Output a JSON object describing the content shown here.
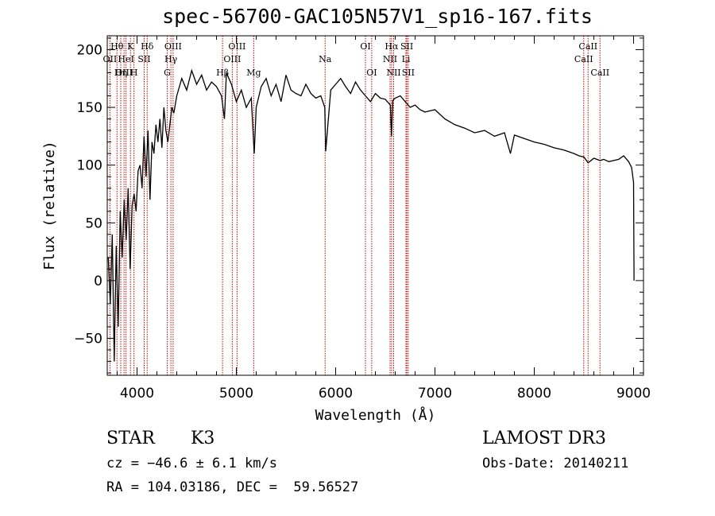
{
  "chart_data": {
    "type": "line",
    "title": "spec-56700-GAC105N57V1_sp16-167.fits",
    "xlabel": "Wavelength (Å)",
    "ylabel": "Flux (relative)",
    "xlim": [
      3700,
      9100
    ],
    "ylim": [
      -82,
      212
    ],
    "xticks": [
      4000,
      5000,
      6000,
      7000,
      8000,
      9000
    ],
    "yticks": [
      -50,
      0,
      50,
      100,
      150,
      200
    ],
    "series": [
      {
        "name": "flux",
        "color": "#000000",
        "x": [
          3710,
          3730,
          3750,
          3770,
          3790,
          3810,
          3830,
          3850,
          3870,
          3890,
          3910,
          3930,
          3950,
          3970,
          3990,
          4010,
          4030,
          4050,
          4070,
          4090,
          4110,
          4130,
          4150,
          4170,
          4190,
          4210,
          4230,
          4250,
          4270,
          4290,
          4310,
          4330,
          4350,
          4370,
          4400,
          4450,
          4500,
          4550,
          4600,
          4650,
          4700,
          4750,
          4800,
          4850,
          4880,
          4900,
          4950,
          5000,
          5050,
          5100,
          5150,
          5180,
          5200,
          5250,
          5300,
          5350,
          5400,
          5450,
          5500,
          5550,
          5600,
          5650,
          5700,
          5750,
          5800,
          5850,
          5890,
          5900,
          5950,
          6000,
          6050,
          6100,
          6150,
          6200,
          6250,
          6300,
          6350,
          6400,
          6450,
          6500,
          6550,
          6562,
          6575,
          6600,
          6650,
          6700,
          6750,
          6800,
          6850,
          6900,
          6950,
          7000,
          7100,
          7200,
          7300,
          7400,
          7500,
          7600,
          7700,
          7760,
          7800,
          7900,
          8000,
          8100,
          8200,
          8300,
          8400,
          8450,
          8500,
          8542,
          8600,
          8662,
          8700,
          8750,
          8800,
          8850,
          8900,
          8950,
          8980,
          9000,
          9005
        ],
        "values": [
          20,
          -20,
          40,
          -70,
          30,
          -40,
          60,
          20,
          70,
          35,
          80,
          10,
          65,
          75,
          60,
          95,
          100,
          80,
          125,
          90,
          130,
          70,
          120,
          110,
          135,
          120,
          140,
          115,
          150,
          130,
          120,
          135,
          150,
          145,
          160,
          175,
          165,
          182,
          170,
          178,
          165,
          172,
          168,
          160,
          140,
          180,
          170,
          155,
          165,
          150,
          158,
          110,
          150,
          168,
          175,
          160,
          170,
          155,
          178,
          165,
          162,
          160,
          170,
          162,
          158,
          160,
          150,
          112,
          165,
          170,
          175,
          168,
          162,
          172,
          165,
          160,
          155,
          162,
          158,
          157,
          152,
          125,
          156,
          158,
          160,
          155,
          150,
          152,
          148,
          146,
          147,
          148,
          140,
          135,
          132,
          128,
          130,
          125,
          128,
          110,
          126,
          123,
          120,
          118,
          115,
          113,
          110,
          108,
          107,
          102,
          106,
          104,
          105,
          103,
          104,
          105,
          108,
          103,
          98,
          85,
          0
        ]
      }
    ],
    "lines": [
      {
        "name": "Hθ",
        "wavelength": 3798,
        "row": 1
      },
      {
        "name": "OII",
        "wavelength": 3727,
        "row": 2
      },
      {
        "name": "OIII",
        "wavelength": 3869,
        "row": 3
      },
      {
        "name": "Hη",
        "wavelength": 3836,
        "row": 3
      },
      {
        "name": "K",
        "wavelength": 3934,
        "row": 1
      },
      {
        "name": "H",
        "wavelength": 3969,
        "row": 3
      },
      {
        "name": "HeI",
        "wavelength": 3889,
        "row": 2
      },
      {
        "name": "SII",
        "wavelength": 4072,
        "row": 2
      },
      {
        "name": "Hδ",
        "wavelength": 4102,
        "row": 1
      },
      {
        "name": "G",
        "wavelength": 4304,
        "row": 3
      },
      {
        "name": "Hγ",
        "wavelength": 4341,
        "row": 2
      },
      {
        "name": "OIII",
        "wavelength": 4363,
        "row": 1
      },
      {
        "name": "Hβ",
        "wavelength": 4861,
        "row": 3
      },
      {
        "name": "OIII",
        "wavelength": 4959,
        "row": 2
      },
      {
        "name": "OIII",
        "wavelength": 5007,
        "row": 1
      },
      {
        "name": "Mg",
        "wavelength": 5175,
        "row": 3
      },
      {
        "name": "Na",
        "wavelength": 5894,
        "row": 2
      },
      {
        "name": "OI",
        "wavelength": 6300,
        "row": 1
      },
      {
        "name": "OI",
        "wavelength": 6363,
        "row": 3
      },
      {
        "name": "NII",
        "wavelength": 6548,
        "row": 2
      },
      {
        "name": "Hα",
        "wavelength": 6563,
        "row": 1
      },
      {
        "name": "NII",
        "wavelength": 6584,
        "row": 3
      },
      {
        "name": "Li",
        "wavelength": 6708,
        "row": 2
      },
      {
        "name": "SII",
        "wavelength": 6717,
        "row": 1
      },
      {
        "name": "SII",
        "wavelength": 6731,
        "row": 3
      },
      {
        "name": "CaII",
        "wavelength": 8498,
        "row": 2
      },
      {
        "name": "CaII",
        "wavelength": 8542,
        "row": 1
      },
      {
        "name": "CaII",
        "wavelength": 8662,
        "row": 3
      }
    ],
    "line_color": "#cc0000"
  },
  "info": {
    "class": "STAR",
    "subclass": "K3",
    "survey": "LAMOST DR3",
    "cz": "cz = −46.6 ± 6.1 km/s",
    "obs_date": "Obs-Date: 20140211",
    "coords": "RA = 104.03186, DEC =  59.56527"
  }
}
